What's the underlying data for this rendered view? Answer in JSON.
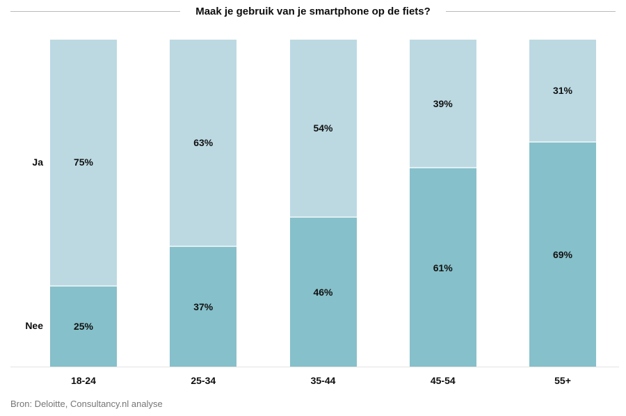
{
  "title": "Maak je gebruik van je smartphone op de fiets?",
  "source": "Bron: Deloitte, Consultancy.nl analyse",
  "row_labels": {
    "ja": "Ja",
    "nee": "Nee"
  },
  "colors": {
    "ja_segment": "#bcd9e2",
    "nee_segment": "#86c0ca",
    "title_text": "#0d0d0d",
    "source_text": "#757575",
    "header_rule": "#b9b9b9",
    "baseline_rule": "#e3e3e3"
  },
  "chart_data": {
    "type": "bar",
    "stacked": true,
    "percent_total": 100,
    "title": "Maak je gebruik van je smartphone op de fiets?",
    "xlabel": "",
    "ylabel": "",
    "ylim": [
      0,
      100
    ],
    "grid": false,
    "legend_position": "left-inline",
    "categories": [
      "18-24",
      "25-34",
      "35-44",
      "45-54",
      "55+"
    ],
    "series": [
      {
        "name": "Ja",
        "position": "top",
        "color": "#bcd9e2",
        "values": [
          75,
          63,
          54,
          39,
          31
        ]
      },
      {
        "name": "Nee",
        "position": "bottom",
        "color": "#86c0ca",
        "values": [
          25,
          37,
          46,
          61,
          69
        ]
      }
    ],
    "value_suffix": "%",
    "annotations": [
      "75%",
      "63%",
      "54%",
      "39%",
      "31%",
      "25%",
      "37%",
      "46%",
      "61%",
      "69%"
    ]
  }
}
